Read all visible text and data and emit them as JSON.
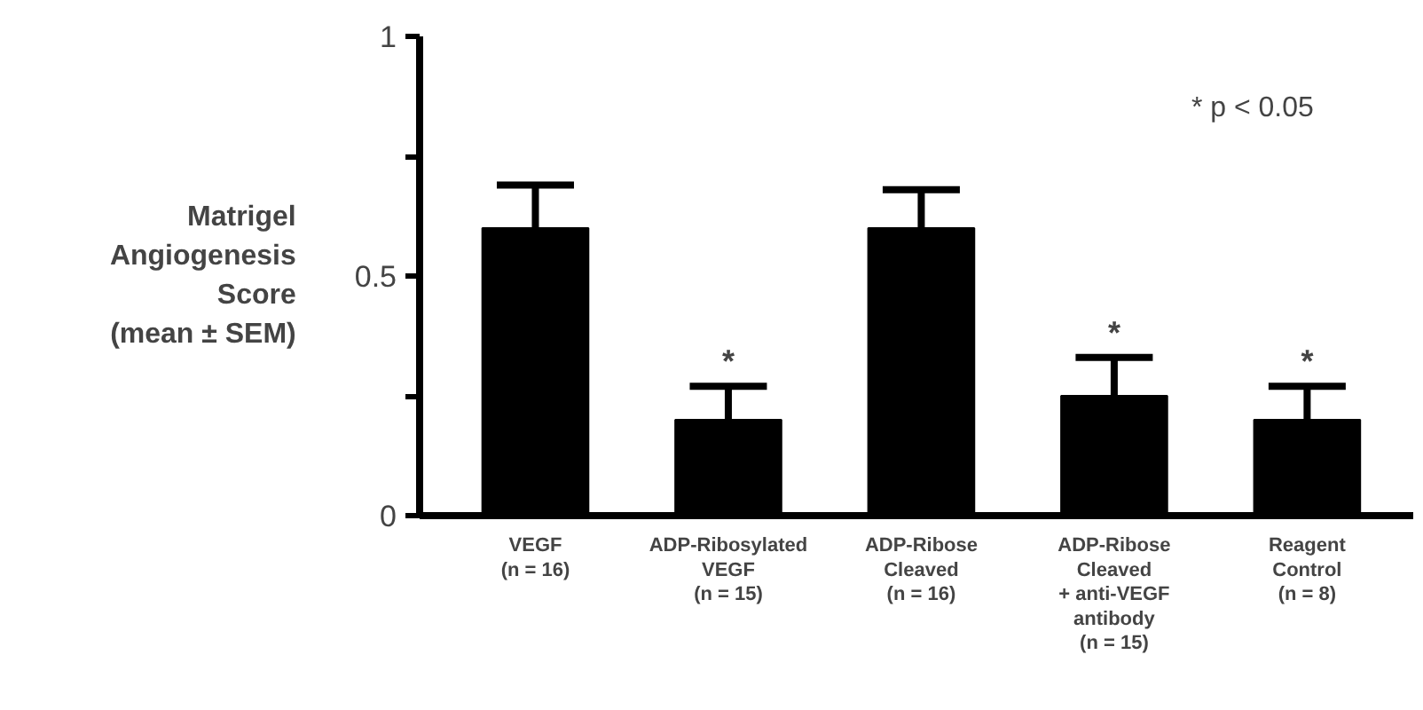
{
  "chart_data": {
    "type": "bar",
    "ylabel": "Matrigel\nAngiogenesis\nScore\n(mean ± SEM)",
    "categories": [
      "VEGF\n(n = 16)",
      "ADP-Ribosylated\nVEGF\n(n = 15)",
      "ADP-Ribose\nCleaved\n(n = 16)",
      "ADP-Ribose\nCleaved\n+ anti-VEGF\nantibody\n(n = 15)",
      "Reagent\nControl\n(n = 8)"
    ],
    "values": [
      0.6,
      0.2,
      0.6,
      0.25,
      0.2
    ],
    "errors": [
      [
        0.6,
        0.69
      ],
      [
        0.2,
        0.27
      ],
      [
        0.6,
        0.68
      ],
      [
        0.25,
        0.33
      ],
      [
        0.2,
        0.27
      ]
    ],
    "value_labels": [
      null,
      "*",
      null,
      "*",
      "*"
    ],
    "color": "#000000",
    "ylim": [
      0,
      1
    ],
    "yticks": [
      0,
      {
        "value": 0.25,
        "label": null
      },
      0.5,
      {
        "value": 0.75,
        "label": null
      },
      1
    ],
    "annotations": [
      "* p < 0.05"
    ],
    "grid": false
  }
}
